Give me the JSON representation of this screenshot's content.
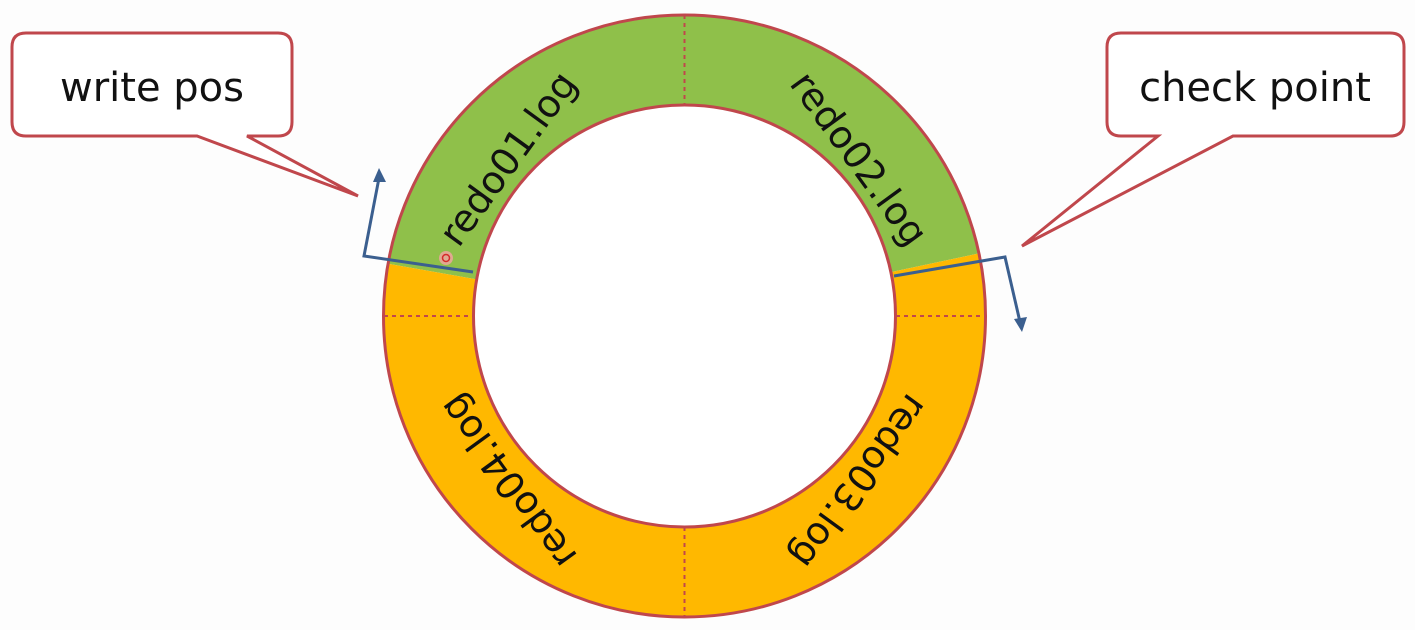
{
  "callouts": {
    "write_pos": "write pos",
    "check_point": "check point"
  },
  "segments": [
    {
      "label": "redo01.log",
      "color": "#8fc04a"
    },
    {
      "label": "redo02.log",
      "color": "#8fc04a"
    },
    {
      "label": "redo03.log",
      "color": "#ffb800"
    },
    {
      "label": "redo04.log",
      "color": "#ffb800"
    }
  ],
  "colors": {
    "border": "#c0474c",
    "arrow": "#3b5f8f",
    "callout_fill": "#ffffff",
    "dot": "#e84a4a"
  }
}
